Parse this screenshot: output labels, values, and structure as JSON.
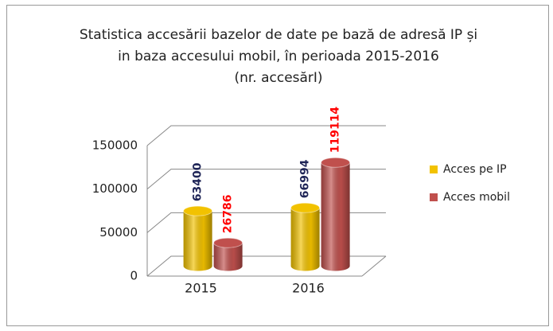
{
  "chart_data": {
    "type": "bar3d",
    "title": [
      "Statistica accesării bazelor de date pe bază de adresă IP și",
      "in baza accesului mobil, în perioada 2015-2016",
      "(nr. accesărI)"
    ],
    "categories": [
      "2015",
      "2016"
    ],
    "series": [
      {
        "name": "Acces pe IP",
        "color": "#f2c200",
        "label_color": "#1f2557",
        "values": [
          63400,
          66994
        ]
      },
      {
        "name": "Acces mobil",
        "color": "#c0504d",
        "label_color": "#ff0000",
        "values": [
          26786,
          119114
        ]
      }
    ],
    "ylim": [
      0,
      150000
    ],
    "yticks": [
      0,
      50000,
      100000,
      150000
    ],
    "grid": true,
    "legend": "right"
  }
}
